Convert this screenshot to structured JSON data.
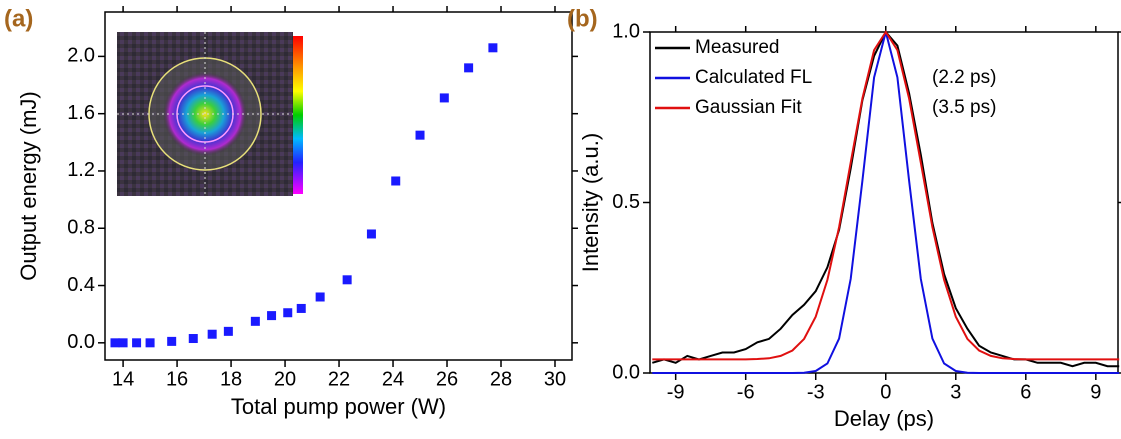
{
  "chart_data": [
    {
      "type": "scatter",
      "panel_label": "(a)",
      "x_label": "Total pump power (W)",
      "y_label": "Output energy (mJ)",
      "x": [
        13.7,
        14.0,
        14.5,
        15.0,
        15.8,
        16.6,
        17.3,
        17.9,
        18.9,
        19.5,
        20.1,
        20.6,
        21.3,
        22.3,
        23.2,
        24.1,
        25.0,
        25.9,
        26.8,
        27.7
      ],
      "values": [
        0.0,
        0.0,
        0.0,
        0.0,
        0.01,
        0.03,
        0.06,
        0.08,
        0.15,
        0.19,
        0.21,
        0.24,
        0.32,
        0.44,
        0.76,
        1.13,
        1.45,
        1.71,
        1.92,
        2.06
      ],
      "color": "#1a1aff",
      "xlim": [
        13.33,
        30.63
      ],
      "xticks": [
        14,
        16,
        18,
        20,
        22,
        24,
        26,
        28,
        30
      ],
      "ylim": [
        -0.12,
        2.31
      ],
      "yticks": [
        {
          "value": 0,
          "label": "0.0"
        },
        {
          "value": 0.4,
          "label": "0.4"
        },
        {
          "value": 0.8,
          "label": "0.8"
        },
        {
          "value": 1.2,
          "label": "1.2"
        },
        {
          "value": 1.6,
          "label": "1.6"
        },
        {
          "value": 2,
          "label": "2.0"
        }
      ]
    },
    {
      "type": "line",
      "panel_label": "(b)",
      "x_label": "Delay (ps)",
      "y_label": "Intensity (a.u.)",
      "x": [
        -10,
        -9.5,
        -9,
        -8.5,
        -8,
        -7.5,
        -7,
        -6.5,
        -6,
        -5.5,
        -5,
        -4.5,
        -4,
        -3.5,
        -3,
        -2.5,
        -2,
        -1.5,
        -1,
        -0.5,
        0,
        0.5,
        1,
        1.5,
        2,
        2.5,
        3,
        3.5,
        4,
        4.5,
        5,
        5.5,
        6,
        6.5,
        7,
        7.5,
        8,
        8.5,
        9,
        9.5,
        10
      ],
      "series": [
        {
          "name": "Measured",
          "color": "#000000",
          "values": [
            0.03,
            0.04,
            0.03,
            0.05,
            0.04,
            0.05,
            0.06,
            0.06,
            0.07,
            0.09,
            0.1,
            0.13,
            0.17,
            0.2,
            0.24,
            0.31,
            0.42,
            0.6,
            0.8,
            0.93,
            1.0,
            0.96,
            0.82,
            0.64,
            0.44,
            0.29,
            0.19,
            0.13,
            0.08,
            0.06,
            0.05,
            0.04,
            0.04,
            0.03,
            0.03,
            0.03,
            0.02,
            0.03,
            0.03,
            0.02,
            0.02
          ]
        },
        {
          "name": "Calculated FL",
          "color": "#1010e0",
          "values": [
            0,
            0,
            0,
            0,
            0,
            0,
            0,
            0,
            0,
            0,
            0,
            0,
            0.0001,
            0.0009,
            0.0058,
            0.0279,
            0.101,
            0.276,
            0.564,
            0.867,
            1.0,
            0.867,
            0.564,
            0.276,
            0.101,
            0.0279,
            0.0058,
            0.0009,
            0.0001,
            0,
            0,
            0,
            0,
            0,
            0,
            0,
            0,
            0,
            0,
            0,
            0
          ]
        },
        {
          "name": "Gaussian Fit",
          "color": "#e01010",
          "values": [
            0.04,
            0.04,
            0.04,
            0.04,
            0.04,
            0.04,
            0.04,
            0.04,
            0.04,
            0.041,
            0.043,
            0.05,
            0.066,
            0.1,
            0.165,
            0.273,
            0.428,
            0.617,
            0.805,
            0.947,
            1.0,
            0.947,
            0.805,
            0.617,
            0.428,
            0.273,
            0.165,
            0.1,
            0.066,
            0.05,
            0.043,
            0.041,
            0.04,
            0.04,
            0.04,
            0.04,
            0.04,
            0.04,
            0.04,
            0.04,
            0.04
          ]
        }
      ],
      "annotations": [
        "(2.2 ps)",
        "(3.5 ps)"
      ],
      "xlim": [
        -10.1,
        9.95
      ],
      "xticks": [
        -9,
        -6,
        -3,
        0,
        3,
        6,
        9
      ],
      "ylim": [
        0,
        1
      ],
      "yticks": [
        {
          "value": 0,
          "label": "0.0"
        },
        {
          "value": 0.5,
          "label": "0.5"
        },
        {
          "value": 1,
          "label": "1.0"
        }
      ]
    }
  ]
}
